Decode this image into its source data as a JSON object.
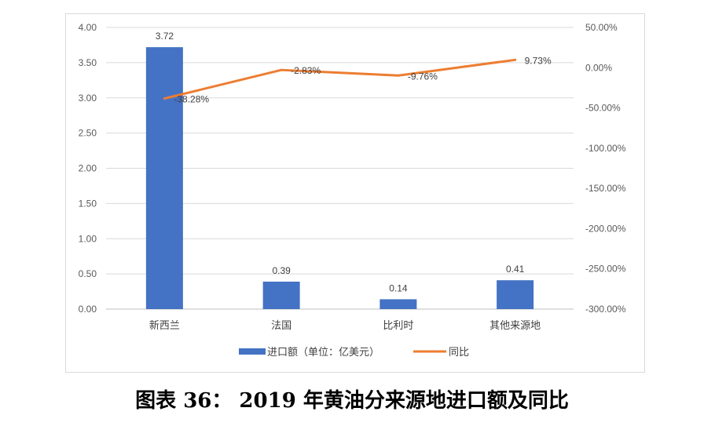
{
  "caption": "图表 36：  2019 年黄油分来源地进口额及同比",
  "chart_data": {
    "type": "bar+line",
    "categories": [
      "新西兰",
      "法国",
      "比利时",
      "其他来源地"
    ],
    "series": [
      {
        "name": "进口额（单位：亿美元）",
        "type": "bar",
        "axis": "left",
        "values": [
          3.72,
          0.39,
          0.14,
          0.41
        ],
        "labels": [
          "3.72",
          "0.39",
          "0.14",
          "0.41"
        ],
        "color": "#4472c4"
      },
      {
        "name": "同比",
        "type": "line",
        "axis": "right",
        "values": [
          -38.28,
          -2.83,
          -9.76,
          9.73
        ],
        "labels": [
          "-38.28%",
          "-2.83%",
          "-9.76%",
          "9.73%"
        ],
        "color": "#ed7d31"
      }
    ],
    "left_axis": {
      "ylim": [
        0,
        4
      ],
      "ticks": [
        "0.00",
        "0.50",
        "1.00",
        "1.50",
        "2.00",
        "2.50",
        "3.00",
        "3.50",
        "4.00"
      ],
      "tick_values": [
        0,
        0.5,
        1,
        1.5,
        2,
        2.5,
        3,
        3.5,
        4
      ]
    },
    "right_axis": {
      "ylim": [
        -300,
        50
      ],
      "ticks": [
        "-300.00%",
        "-250.00%",
        "-200.00%",
        "-150.00%",
        "-100.00%",
        "-50.00%",
        "0.00%",
        "50.00%"
      ],
      "tick_values": [
        -300,
        -250,
        -200,
        -150,
        -100,
        -50,
        0,
        50
      ]
    },
    "grid": true,
    "legend_position": "bottom"
  }
}
